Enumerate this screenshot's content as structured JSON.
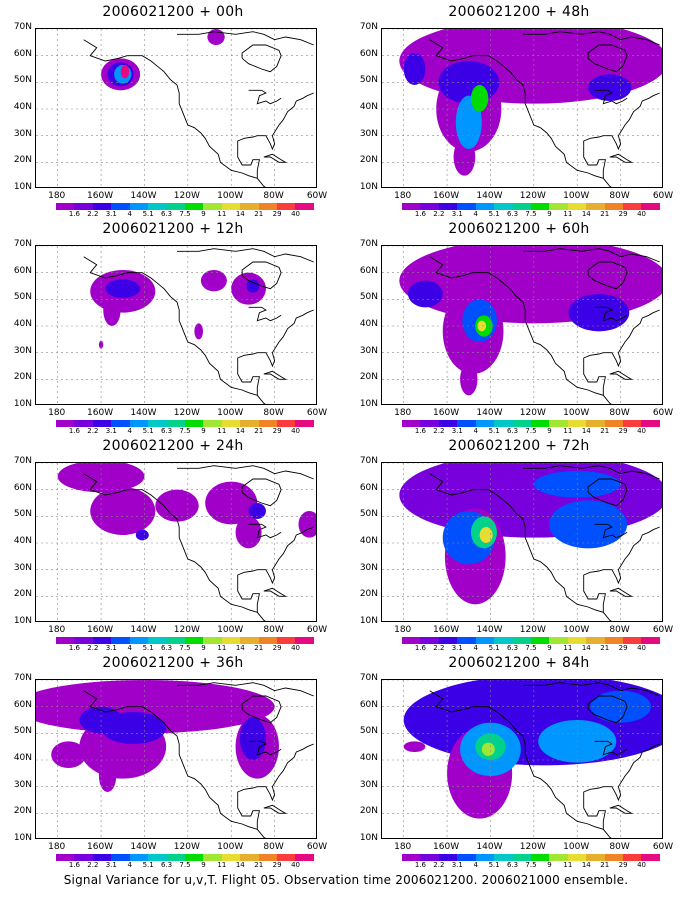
{
  "panels": [
    {
      "title": "2006021200 + 00h",
      "col": 0,
      "row": 0,
      "blobs": [
        {
          "lon": -151,
          "lat": 53,
          "rx": 9,
          "ry": 6,
          "level": 0
        },
        {
          "lon": -151,
          "lat": 53,
          "rx": 6,
          "ry": 4.5,
          "level": 2
        },
        {
          "lon": -150,
          "lat": 53,
          "rx": 4,
          "ry": 3.5,
          "level": 4
        },
        {
          "lon": -149,
          "lat": 54,
          "rx": 2,
          "ry": 2.5,
          "level": 13
        },
        {
          "lon": -107,
          "lat": 67,
          "rx": 4,
          "ry": 3,
          "level": 0
        }
      ]
    },
    {
      "title": "2006021200 + 12h",
      "col": 0,
      "row": 1,
      "blobs": [
        {
          "lon": -150,
          "lat": 53,
          "rx": 15,
          "ry": 8,
          "level": 0
        },
        {
          "lon": -155,
          "lat": 46,
          "rx": 4,
          "ry": 6,
          "level": 0
        },
        {
          "lon": -150,
          "lat": 54,
          "rx": 8,
          "ry": 3.5,
          "level": 2
        },
        {
          "lon": -108,
          "lat": 57,
          "rx": 6,
          "ry": 4,
          "level": 0
        },
        {
          "lon": -92,
          "lat": 54,
          "rx": 8,
          "ry": 6,
          "level": 0
        },
        {
          "lon": -90,
          "lat": 55,
          "rx": 3,
          "ry": 2.5,
          "level": 2
        },
        {
          "lon": -115,
          "lat": 38,
          "rx": 2,
          "ry": 3,
          "level": 0
        },
        {
          "lon": -160,
          "lat": 33,
          "rx": 1,
          "ry": 1.5,
          "level": 0
        }
      ]
    },
    {
      "title": "2006021200 + 24h",
      "col": 0,
      "row": 2,
      "blobs": [
        {
          "lon": -160,
          "lat": 65,
          "rx": 20,
          "ry": 6,
          "level": 0
        },
        {
          "lon": -150,
          "lat": 52,
          "rx": 15,
          "ry": 9,
          "level": 0
        },
        {
          "lon": -125,
          "lat": 54,
          "rx": 10,
          "ry": 6,
          "level": 0
        },
        {
          "lon": -100,
          "lat": 55,
          "rx": 12,
          "ry": 8,
          "level": 0
        },
        {
          "lon": -92,
          "lat": 44,
          "rx": 6,
          "ry": 6,
          "level": 0
        },
        {
          "lon": -88,
          "lat": 52,
          "rx": 4,
          "ry": 3,
          "level": 2
        },
        {
          "lon": -64,
          "lat": 47,
          "rx": 5,
          "ry": 5,
          "level": 0
        },
        {
          "lon": -141,
          "lat": 43,
          "rx": 3,
          "ry": 2,
          "level": 2
        }
      ]
    },
    {
      "title": "2006021200 + 36h",
      "col": 0,
      "row": 3,
      "blobs": [
        {
          "lon": -140,
          "lat": 60,
          "rx": 60,
          "ry": 10,
          "level": 0
        },
        {
          "lon": -150,
          "lat": 45,
          "rx": 20,
          "ry": 12,
          "level": 0
        },
        {
          "lon": -157,
          "lat": 34,
          "rx": 4,
          "ry": 6,
          "level": 0
        },
        {
          "lon": -88,
          "lat": 45,
          "rx": 10,
          "ry": 12,
          "level": 0
        },
        {
          "lon": -175,
          "lat": 42,
          "rx": 8,
          "ry": 5,
          "level": 0
        },
        {
          "lon": -145,
          "lat": 52,
          "rx": 15,
          "ry": 6,
          "level": 2
        },
        {
          "lon": -90,
          "lat": 48,
          "rx": 6,
          "ry": 8,
          "level": 2
        },
        {
          "lon": -160,
          "lat": 55,
          "rx": 10,
          "ry": 5,
          "level": 2
        }
      ]
    },
    {
      "title": "2006021200 + 48h",
      "col": 1,
      "row": 0,
      "blobs": [
        {
          "lon": -120,
          "lat": 58,
          "rx": 62,
          "ry": 16,
          "level": 0
        },
        {
          "lon": -150,
          "lat": 40,
          "rx": 15,
          "ry": 16,
          "level": 0
        },
        {
          "lon": -152,
          "lat": 22,
          "rx": 5,
          "ry": 7,
          "level": 0
        },
        {
          "lon": -150,
          "lat": 50,
          "rx": 14,
          "ry": 8,
          "level": 2
        },
        {
          "lon": -150,
          "lat": 35,
          "rx": 6,
          "ry": 10,
          "level": 4
        },
        {
          "lon": -175,
          "lat": 55,
          "rx": 5,
          "ry": 6,
          "level": 2
        },
        {
          "lon": -85,
          "lat": 48,
          "rx": 10,
          "ry": 5,
          "level": 2
        },
        {
          "lon": -145,
          "lat": 44,
          "rx": 4,
          "ry": 5,
          "level": 7
        }
      ]
    },
    {
      "title": "2006021200 + 60h",
      "col": 1,
      "row": 1,
      "blobs": [
        {
          "lon": -120,
          "lat": 57,
          "rx": 62,
          "ry": 16,
          "level": 0
        },
        {
          "lon": -148,
          "lat": 38,
          "rx": 14,
          "ry": 16,
          "level": 0
        },
        {
          "lon": -150,
          "lat": 20,
          "rx": 4,
          "ry": 6,
          "level": 0
        },
        {
          "lon": -145,
          "lat": 42,
          "rx": 8,
          "ry": 8,
          "level": 3
        },
        {
          "lon": -143,
          "lat": 40,
          "rx": 4,
          "ry": 4,
          "level": 7
        },
        {
          "lon": -144,
          "lat": 40,
          "rx": 2,
          "ry": 2,
          "level": 9
        },
        {
          "lon": -90,
          "lat": 45,
          "rx": 14,
          "ry": 7,
          "level": 2
        },
        {
          "lon": -170,
          "lat": 52,
          "rx": 8,
          "ry": 5,
          "level": 2
        }
      ]
    },
    {
      "title": "2006021200 + 72h",
      "col": 1,
      "row": 2,
      "blobs": [
        {
          "lon": -120,
          "lat": 58,
          "rx": 62,
          "ry": 16,
          "level": 1
        },
        {
          "lon": -147,
          "lat": 35,
          "rx": 14,
          "ry": 18,
          "level": 0
        },
        {
          "lon": -150,
          "lat": 42,
          "rx": 12,
          "ry": 10,
          "level": 3
        },
        {
          "lon": -143,
          "lat": 44,
          "rx": 6,
          "ry": 6,
          "level": 6
        },
        {
          "lon": -142,
          "lat": 43,
          "rx": 3,
          "ry": 3,
          "level": 9
        },
        {
          "lon": -95,
          "lat": 47,
          "rx": 18,
          "ry": 9,
          "level": 3
        },
        {
          "lon": -100,
          "lat": 62,
          "rx": 20,
          "ry": 5,
          "level": 3
        }
      ]
    },
    {
      "title": "2006021200 + 84h",
      "col": 1,
      "row": 3,
      "blobs": [
        {
          "lon": -115,
          "lat": 55,
          "rx": 65,
          "ry": 17,
          "level": 2
        },
        {
          "lon": -145,
          "lat": 35,
          "rx": 15,
          "ry": 17,
          "level": 0
        },
        {
          "lon": -140,
          "lat": 44,
          "rx": 14,
          "ry": 10,
          "level": 4
        },
        {
          "lon": -140,
          "lat": 45,
          "rx": 7,
          "ry": 5,
          "level": 6
        },
        {
          "lon": -141,
          "lat": 44,
          "rx": 3,
          "ry": 2.5,
          "level": 8
        },
        {
          "lon": -100,
          "lat": 47,
          "rx": 18,
          "ry": 8,
          "level": 4
        },
        {
          "lon": -80,
          "lat": 60,
          "rx": 14,
          "ry": 6,
          "level": 3
        },
        {
          "lon": -175,
          "lat": 45,
          "rx": 5,
          "ry": 2,
          "level": 0
        }
      ]
    }
  ],
  "axes": {
    "lat_labels": [
      "10N",
      "20N",
      "30N",
      "40N",
      "50N",
      "60N",
      "70N"
    ],
    "lat_values": [
      10,
      20,
      30,
      40,
      50,
      60,
      70
    ],
    "lon_labels": [
      "180",
      "160W",
      "140W",
      "120W",
      "100W",
      "80W",
      "60W"
    ],
    "lon_values": [
      -180,
      -160,
      -140,
      -120,
      -100,
      -80,
      -60
    ],
    "lon_min": -190,
    "lon_max": -60,
    "lat_min": 10,
    "lat_max": 70
  },
  "colorbar": {
    "labels": [
      "1.6",
      "2.2",
      "3.1",
      "4",
      "5.1",
      "6.3",
      "7.5",
      "9",
      "11",
      "14",
      "21",
      "29",
      "40"
    ],
    "colors": [
      "#a000c8",
      "#7800dc",
      "#3c00e6",
      "#0050ff",
      "#0096ff",
      "#00c8c8",
      "#00d28c",
      "#00dc00",
      "#a0e632",
      "#e6dc32",
      "#e6af2d",
      "#f08228",
      "#fa3c3c",
      "#e60a82"
    ]
  },
  "caption": "Signal Variance for u,v,T. Flight 05. Observation time 2006021200. 2006021000 ensemble."
}
